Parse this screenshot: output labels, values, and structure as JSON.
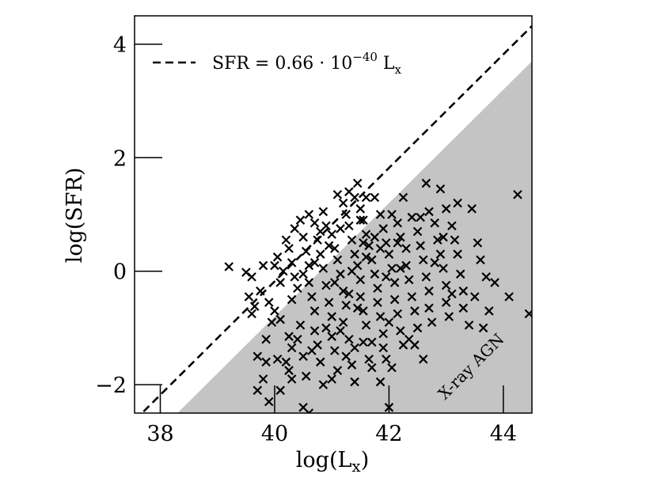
{
  "chart_data": {
    "type": "scatter",
    "xlabel": "log(L",
    "xlabel_sub": "x",
    "xlabel_close": ")",
    "ylabel": "log(SFR)",
    "xlim": [
      37.55,
      44.5
    ],
    "ylim": [
      -2.5,
      4.5
    ],
    "xticks": [
      38,
      40,
      42,
      44
    ],
    "yticks": [
      -2,
      0,
      2,
      4
    ],
    "xtick_labels": [
      "38",
      "40",
      "42",
      "44"
    ],
    "ytick_labels": [
      "−2",
      "0",
      "2",
      "4"
    ],
    "grid": false,
    "legend_position": "top-left",
    "legend": {
      "label_main": "SFR = 0.66 · 10",
      "label_exp": "−40",
      "label_tail": " L",
      "label_sub": "x",
      "line_style": "dashed",
      "color": "#000000"
    },
    "reference_line": {
      "equation": "log(SFR) = log(Lx) + log(0.66) − 40",
      "slope": 1,
      "intercept": -40.18,
      "style": "dashed",
      "color": "#000000"
    },
    "shaded_region": {
      "label": "X-ray AGN",
      "color": "#c4c4c4",
      "boundary_slope": 1,
      "boundary_intercept": -40.8
    },
    "series": [
      {
        "marker": "x",
        "color": "#000000",
        "points": [
          [
            39.2,
            0.08
          ],
          [
            39.5,
            -0.02
          ],
          [
            39.6,
            -0.1
          ],
          [
            39.55,
            -0.45
          ],
          [
            39.65,
            -0.62
          ],
          [
            39.8,
            0.1
          ],
          [
            39.75,
            -0.35
          ],
          [
            39.6,
            -0.75
          ],
          [
            39.7,
            -1.5
          ],
          [
            39.85,
            -1.6
          ],
          [
            39.8,
            -1.9
          ],
          [
            39.7,
            -2.1
          ],
          [
            39.9,
            -2.3
          ],
          [
            39.85,
            -1.2
          ],
          [
            39.95,
            -0.9
          ],
          [
            39.9,
            -0.55
          ],
          [
            40.0,
            0.1
          ],
          [
            40.05,
            0.25
          ],
          [
            40.1,
            -0.2
          ],
          [
            40.0,
            -0.7
          ],
          [
            40.1,
            -0.85
          ],
          [
            40.05,
            -1.55
          ],
          [
            40.2,
            -1.6
          ],
          [
            40.25,
            -1.75
          ],
          [
            40.1,
            -2.1
          ],
          [
            40.3,
            -1.9
          ],
          [
            40.2,
            0.55
          ],
          [
            40.25,
            0.4
          ],
          [
            40.3,
            0.15
          ],
          [
            40.35,
            -0.1
          ],
          [
            40.4,
            -0.3
          ],
          [
            40.3,
            -0.5
          ],
          [
            40.45,
            -0.95
          ],
          [
            40.4,
            -1.2
          ],
          [
            40.5,
            -1.5
          ],
          [
            40.55,
            -1.85
          ],
          [
            40.5,
            -2.4
          ],
          [
            40.6,
            -2.5
          ],
          [
            40.35,
            0.75
          ],
          [
            40.45,
            0.9
          ],
          [
            40.5,
            0.6
          ],
          [
            40.55,
            0.35
          ],
          [
            40.6,
            0.1
          ],
          [
            40.6,
            -0.2
          ],
          [
            40.65,
            -0.45
          ],
          [
            40.7,
            -0.7
          ],
          [
            40.7,
            -1.05
          ],
          [
            40.75,
            -1.3
          ],
          [
            40.8,
            -1.6
          ],
          [
            40.85,
            -2.0
          ],
          [
            40.6,
            1.0
          ],
          [
            40.7,
            0.85
          ],
          [
            40.75,
            0.55
          ],
          [
            40.8,
            0.3
          ],
          [
            40.85,
            0.05
          ],
          [
            40.9,
            -0.25
          ],
          [
            40.95,
            -0.55
          ],
          [
            41.0,
            -0.8
          ],
          [
            41.0,
            -1.15
          ],
          [
            41.05,
            -1.4
          ],
          [
            41.1,
            -1.75
          ],
          [
            41.0,
            -1.9
          ],
          [
            40.85,
            1.05
          ],
          [
            40.9,
            0.8
          ],
          [
            41.0,
            0.65
          ],
          [
            41.05,
            0.4
          ],
          [
            41.1,
            0.2
          ],
          [
            41.15,
            -0.05
          ],
          [
            41.2,
            -0.35
          ],
          [
            41.25,
            -0.6
          ],
          [
            41.2,
            -0.9
          ],
          [
            41.3,
            -1.2
          ],
          [
            41.25,
            -1.5
          ],
          [
            41.35,
            -1.65
          ],
          [
            41.1,
            1.35
          ],
          [
            41.2,
            1.2
          ],
          [
            41.25,
            1.0
          ],
          [
            41.3,
            0.8
          ],
          [
            41.35,
            0.55
          ],
          [
            41.4,
            0.3
          ],
          [
            41.45,
            0.1
          ],
          [
            41.5,
            -0.15
          ],
          [
            41.5,
            -0.45
          ],
          [
            41.55,
            -0.7
          ],
          [
            41.6,
            -0.95
          ],
          [
            41.55,
            -1.25
          ],
          [
            41.65,
            -1.55
          ],
          [
            41.4,
            -1.95
          ],
          [
            41.3,
            1.4
          ],
          [
            41.4,
            1.3
          ],
          [
            41.5,
            1.1
          ],
          [
            41.55,
            0.9
          ],
          [
            41.6,
            0.65
          ],
          [
            41.65,
            0.45
          ],
          [
            41.7,
            0.2
          ],
          [
            41.75,
            -0.05
          ],
          [
            41.8,
            -0.3
          ],
          [
            41.8,
            -0.55
          ],
          [
            41.85,
            -0.8
          ],
          [
            41.9,
            -1.1
          ],
          [
            41.9,
            -1.35
          ],
          [
            41.95,
            -1.55
          ],
          [
            41.45,
            1.55
          ],
          [
            41.6,
            1.3
          ],
          [
            41.75,
            1.3
          ],
          [
            41.85,
            1.0
          ],
          [
            41.9,
            0.75
          ],
          [
            41.95,
            0.5
          ],
          [
            42.0,
            0.3
          ],
          [
            42.05,
            0.05
          ],
          [
            42.1,
            -0.2
          ],
          [
            42.1,
            -0.5
          ],
          [
            42.15,
            -0.75
          ],
          [
            42.2,
            -1.05
          ],
          [
            42.25,
            -1.3
          ],
          [
            42.0,
            -2.4
          ],
          [
            42.05,
            1.0
          ],
          [
            42.15,
            0.85
          ],
          [
            42.2,
            0.6
          ],
          [
            42.3,
            0.4
          ],
          [
            42.3,
            0.1
          ],
          [
            42.35,
            -0.15
          ],
          [
            42.4,
            -0.45
          ],
          [
            42.45,
            -0.7
          ],
          [
            42.5,
            -1.0
          ],
          [
            42.45,
            -1.3
          ],
          [
            42.25,
            1.3
          ],
          [
            42.4,
            0.95
          ],
          [
            42.5,
            0.7
          ],
          [
            42.55,
            0.45
          ],
          [
            42.6,
            0.2
          ],
          [
            42.65,
            -0.1
          ],
          [
            42.7,
            -0.35
          ],
          [
            42.7,
            -0.65
          ],
          [
            42.75,
            -0.9
          ],
          [
            42.65,
            1.55
          ],
          [
            42.7,
            1.05
          ],
          [
            42.8,
            0.85
          ],
          [
            42.85,
            0.55
          ],
          [
            42.9,
            0.3
          ],
          [
            42.95,
            0.05
          ],
          [
            43.0,
            -0.25
          ],
          [
            43.0,
            -0.55
          ],
          [
            43.05,
            -0.8
          ],
          [
            42.9,
            1.45
          ],
          [
            43.0,
            1.1
          ],
          [
            43.1,
            0.8
          ],
          [
            43.15,
            0.55
          ],
          [
            43.2,
            0.3
          ],
          [
            43.25,
            -0.05
          ],
          [
            43.3,
            -0.35
          ],
          [
            43.3,
            -0.65
          ],
          [
            43.4,
            -0.95
          ],
          [
            43.2,
            1.2
          ],
          [
            43.45,
            1.1
          ],
          [
            43.55,
            0.5
          ],
          [
            43.6,
            0.2
          ],
          [
            43.7,
            -0.1
          ],
          [
            43.5,
            -0.45
          ],
          [
            43.75,
            -0.7
          ],
          [
            43.65,
            -1.0
          ],
          [
            43.85,
            -0.2
          ],
          [
            44.1,
            -0.45
          ],
          [
            44.25,
            1.35
          ],
          [
            44.45,
            -0.75
          ],
          [
            40.15,
            0.0
          ],
          [
            40.3,
            -1.35
          ],
          [
            40.5,
            -0.05
          ],
          [
            40.7,
            0.15
          ],
          [
            40.95,
            0.45
          ],
          [
            41.15,
            0.75
          ],
          [
            41.35,
            0.0
          ],
          [
            41.45,
            -0.65
          ],
          [
            41.6,
            0.25
          ],
          [
            41.7,
            -1.25
          ],
          [
            41.85,
            0.4
          ],
          [
            42.0,
            -0.9
          ],
          [
            42.2,
            0.05
          ],
          [
            42.35,
            -1.2
          ],
          [
            42.55,
            0.95
          ],
          [
            42.6,
            -1.55
          ],
          [
            42.8,
            0.15
          ],
          [
            42.95,
            0.6
          ],
          [
            43.1,
            -0.4
          ],
          [
            41.05,
            -0.2
          ],
          [
            41.3,
            -0.4
          ],
          [
            41.55,
            0.5
          ],
          [
            41.75,
            0.6
          ],
          [
            41.95,
            -0.1
          ],
          [
            42.15,
            0.5
          ],
          [
            40.65,
            -1.4
          ],
          [
            40.9,
            -1.0
          ],
          [
            41.15,
            -1.05
          ],
          [
            41.4,
            -1.35
          ],
          [
            41.7,
            -1.7
          ],
          [
            41.85,
            -1.95
          ],
          [
            42.05,
            -1.7
          ],
          [
            40.25,
            -1.15
          ],
          [
            40.8,
            0.7
          ],
          [
            41.5,
            0.9
          ]
        ]
      }
    ]
  }
}
